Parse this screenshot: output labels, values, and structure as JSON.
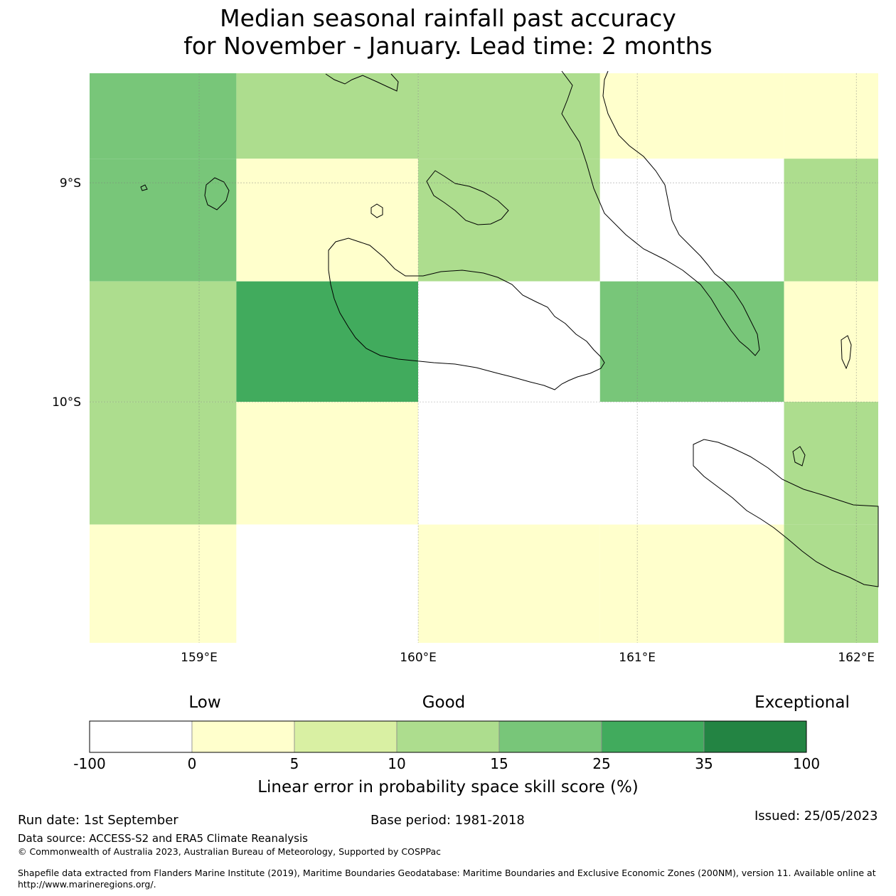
{
  "title": {
    "line1": "Median seasonal rainfall past accuracy",
    "line2": "for November - January. Lead time: 2 months"
  },
  "map": {
    "lon_range": [
      158.5,
      162.1
    ],
    "lat_range": [
      -8.5,
      -11.1
    ],
    "x_ticks": [
      "159°E",
      "160°E",
      "161°E",
      "162°E"
    ],
    "y_ticks": [
      "9°S",
      "10°S"
    ],
    "grid_lon_edges": [
      158.5,
      159.17,
      160.0,
      160.83,
      161.67,
      162.1
    ],
    "grid_lat_edges": [
      -8.5,
      -8.89,
      -9.45,
      -10.0,
      -10.56,
      -11.1
    ],
    "cells": [
      [
        "15",
        "10",
        "10",
        "0",
        "0"
      ],
      [
        "15",
        "0",
        "10",
        "-100",
        "10"
      ],
      [
        "10",
        "25",
        "-100",
        "15",
        "0"
      ],
      [
        "10",
        "0",
        "-100",
        "-100",
        "10"
      ],
      [
        "0",
        "-100",
        "0",
        "0",
        "10"
      ]
    ]
  },
  "legend": {
    "category_labels": [
      "Low",
      "Good",
      "Exceptional"
    ],
    "tick_labels": [
      "-100",
      "0",
      "5",
      "10",
      "15",
      "25",
      "35",
      "100"
    ],
    "colors": [
      "#ffffff",
      "#ffffcc",
      "#d9f0a3",
      "#addd8e",
      "#78c679",
      "#41ab5d",
      "#238443"
    ],
    "axis_label": "Linear error in probability space skill score (%)"
  },
  "footer": {
    "run_date": "Run date: 1st September",
    "base_period": "Base period: 1981-2018",
    "issued": "Issued: 25/05/2023",
    "data_source": "Data source: ACCESS-S2 and ERA5 Climate Reanalysis",
    "copyright": "© Commonwealth of Australia 2023, Australian Bureau of Meteorology, Supported by COSPPac",
    "shapefile_line1": "Shapefile data extracted from Flanders Marine Institute (2019), Maritime Boundaries Geodatabase: Maritime Boundaries and Exclusive Economic Zones (200NM), version 11. Available online at",
    "shapefile_line2": "http://www.marineregions.org/."
  }
}
